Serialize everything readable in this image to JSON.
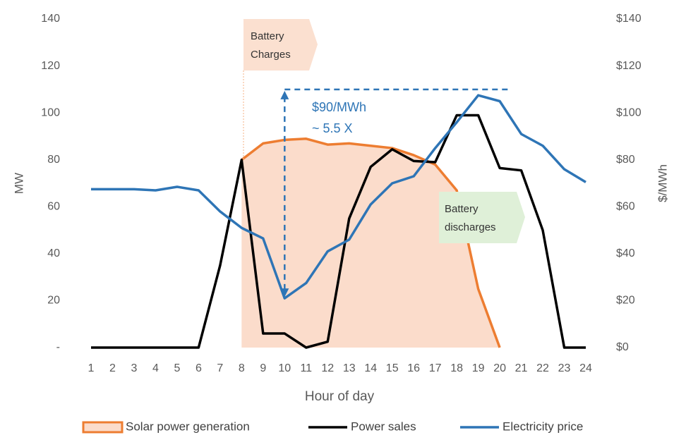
{
  "chart_data": {
    "type": "line",
    "categories": [
      "1",
      "2",
      "3",
      "4",
      "5",
      "6",
      "7",
      "8",
      "9",
      "10",
      "11",
      "12",
      "13",
      "14",
      "15",
      "16",
      "17",
      "18",
      "19",
      "20",
      "21",
      "22",
      "23",
      "24"
    ],
    "x_label": "Hour of day",
    "y_label": "MW",
    "y2_label": "$/MWh",
    "ylim": [
      0,
      140
    ],
    "yticks": [
      {
        "value": 0,
        "label": "-"
      },
      20,
      40,
      60,
      80,
      100,
      120,
      140
    ],
    "y2lim": [
      0,
      140
    ],
    "y2ticks": [
      {
        "value": 0,
        "label": "$0"
      },
      {
        "value": 20,
        "label": "$20"
      },
      {
        "value": 40,
        "label": "$40"
      },
      {
        "value": 60,
        "label": "$60"
      },
      {
        "value": 80,
        "label": "$80"
      },
      {
        "value": 100,
        "label": "$100"
      },
      {
        "value": 120,
        "label": "$120"
      },
      {
        "value": 140,
        "label": "$140"
      }
    ],
    "series": [
      {
        "name": "Solar power generation",
        "color": "#ed7d31",
        "fill": "#fbdccb",
        "area": true,
        "values": [
          null,
          null,
          null,
          null,
          null,
          null,
          null,
          80,
          87,
          88.5,
          89,
          86.5,
          87,
          86,
          85,
          82,
          78,
          67,
          25,
          0,
          null,
          null,
          null,
          null
        ]
      },
      {
        "name": "Power sales",
        "color": "#000000",
        "values": [
          0,
          0,
          0,
          0,
          0,
          0,
          35,
          80,
          6,
          6,
          0,
          2.5,
          55,
          77,
          84.5,
          79.5,
          79,
          99,
          99,
          76.5,
          75.5,
          50,
          0,
          0
        ]
      },
      {
        "name": "Electricity price",
        "color": "#2e75b6",
        "axis": "y2",
        "values": [
          67.5,
          67.5,
          67.5,
          67,
          68.5,
          67,
          58,
          51,
          46.5,
          21,
          27.5,
          41,
          46,
          61,
          70,
          73,
          85,
          96,
          107.5,
          105,
          91,
          86,
          76,
          70.5
        ]
      }
    ],
    "annotations": [
      "Battery",
      "Charges",
      "$90/MWh",
      "~ 5.5 X",
      "Battery",
      "discharges"
    ]
  }
}
